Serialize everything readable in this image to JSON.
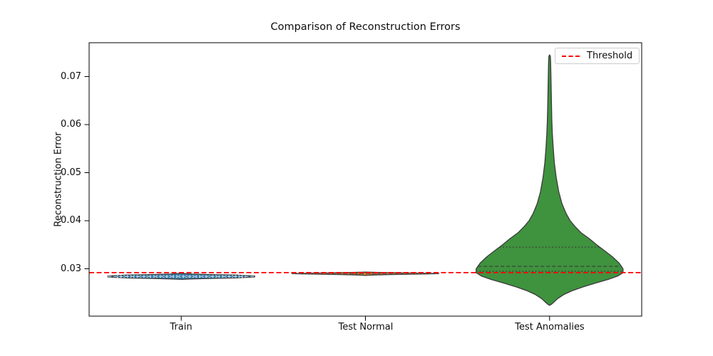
{
  "chart_data": {
    "type": "violin",
    "title": "Comparison of Reconstruction Errors",
    "ylabel": "Reconstruction Error",
    "xlabel": "",
    "categories": [
      "Train",
      "Test Normal",
      "Test Anomalies"
    ],
    "ytick_labels": [
      "0.03",
      "0.04",
      "0.05",
      "0.06",
      "0.07"
    ],
    "ytick_values": [
      0.03,
      0.04,
      0.05,
      0.06,
      0.07
    ],
    "ylim": [
      0.0202,
      0.077
    ],
    "grid": false,
    "legend": {
      "position": "upper right",
      "entries": [
        {
          "label": "Threshold",
          "color": "#ff0000",
          "style": "dashed"
        }
      ]
    },
    "threshold": {
      "label": "Threshold",
      "value": 0.0292,
      "color": "#ff0000",
      "style": "dashed"
    },
    "edge_color": "#3b3b3b",
    "series": [
      {
        "name": "Train",
        "fill": "#3a7ca8",
        "inner_color": "#b9d4e6",
        "stats": {
          "min": 0.0278,
          "q1": 0.0282,
          "median": 0.0284,
          "q3": 0.0286,
          "max": 0.0291
        },
        "shape": [
          [
            0.0291,
            0.0
          ],
          [
            0.029,
            0.05
          ],
          [
            0.0289,
            0.15
          ],
          [
            0.0288,
            0.4
          ],
          [
            0.0287,
            0.75
          ],
          [
            0.0285,
            1.0
          ],
          [
            0.0283,
            1.0
          ],
          [
            0.0281,
            0.75
          ],
          [
            0.028,
            0.45
          ],
          [
            0.0279,
            0.15
          ],
          [
            0.0278,
            0.0
          ]
        ]
      },
      {
        "name": "Test Normal",
        "fill": "#e8851f",
        "inner_color": "#5a5a5a",
        "stats": {
          "min": 0.0286,
          "q1": 0.0289,
          "median": 0.029,
          "q3": 0.0291,
          "max": 0.0293
        },
        "shape": [
          [
            0.0293,
            0.0
          ],
          [
            0.0292,
            0.3
          ],
          [
            0.0291,
            0.8
          ],
          [
            0.029,
            1.0
          ],
          [
            0.0289,
            0.8
          ],
          [
            0.0288,
            0.35
          ],
          [
            0.0287,
            0.08
          ],
          [
            0.0286,
            0.0
          ]
        ]
      },
      {
        "name": "Test Anomalies",
        "fill": "#3f923e",
        "inner_color": "#3b3b3b",
        "stats": {
          "min": 0.0224,
          "q1": 0.0295,
          "median": 0.0305,
          "q3": 0.0345,
          "max": 0.0745
        },
        "shape": [
          [
            0.0745,
            0.0
          ],
          [
            0.0742,
            0.01
          ],
          [
            0.073,
            0.014
          ],
          [
            0.07,
            0.018
          ],
          [
            0.067,
            0.022
          ],
          [
            0.064,
            0.026
          ],
          [
            0.061,
            0.03
          ],
          [
            0.058,
            0.038
          ],
          [
            0.055,
            0.05
          ],
          [
            0.052,
            0.065
          ],
          [
            0.049,
            0.09
          ],
          [
            0.046,
            0.125
          ],
          [
            0.0435,
            0.17
          ],
          [
            0.0415,
            0.225
          ],
          [
            0.04,
            0.28
          ],
          [
            0.0388,
            0.345
          ],
          [
            0.0375,
            0.43
          ],
          [
            0.0362,
            0.545
          ],
          [
            0.035,
            0.64
          ],
          [
            0.0338,
            0.745
          ],
          [
            0.0325,
            0.855
          ],
          [
            0.0312,
            0.945
          ],
          [
            0.03,
            1.0
          ],
          [
            0.0292,
            1.0
          ],
          [
            0.0285,
            0.93
          ],
          [
            0.0278,
            0.8
          ],
          [
            0.027,
            0.62
          ],
          [
            0.0262,
            0.45
          ],
          [
            0.0254,
            0.3
          ],
          [
            0.0246,
            0.19
          ],
          [
            0.0238,
            0.11
          ],
          [
            0.0231,
            0.06
          ],
          [
            0.0226,
            0.025
          ],
          [
            0.0224,
            0.0
          ]
        ]
      }
    ]
  }
}
